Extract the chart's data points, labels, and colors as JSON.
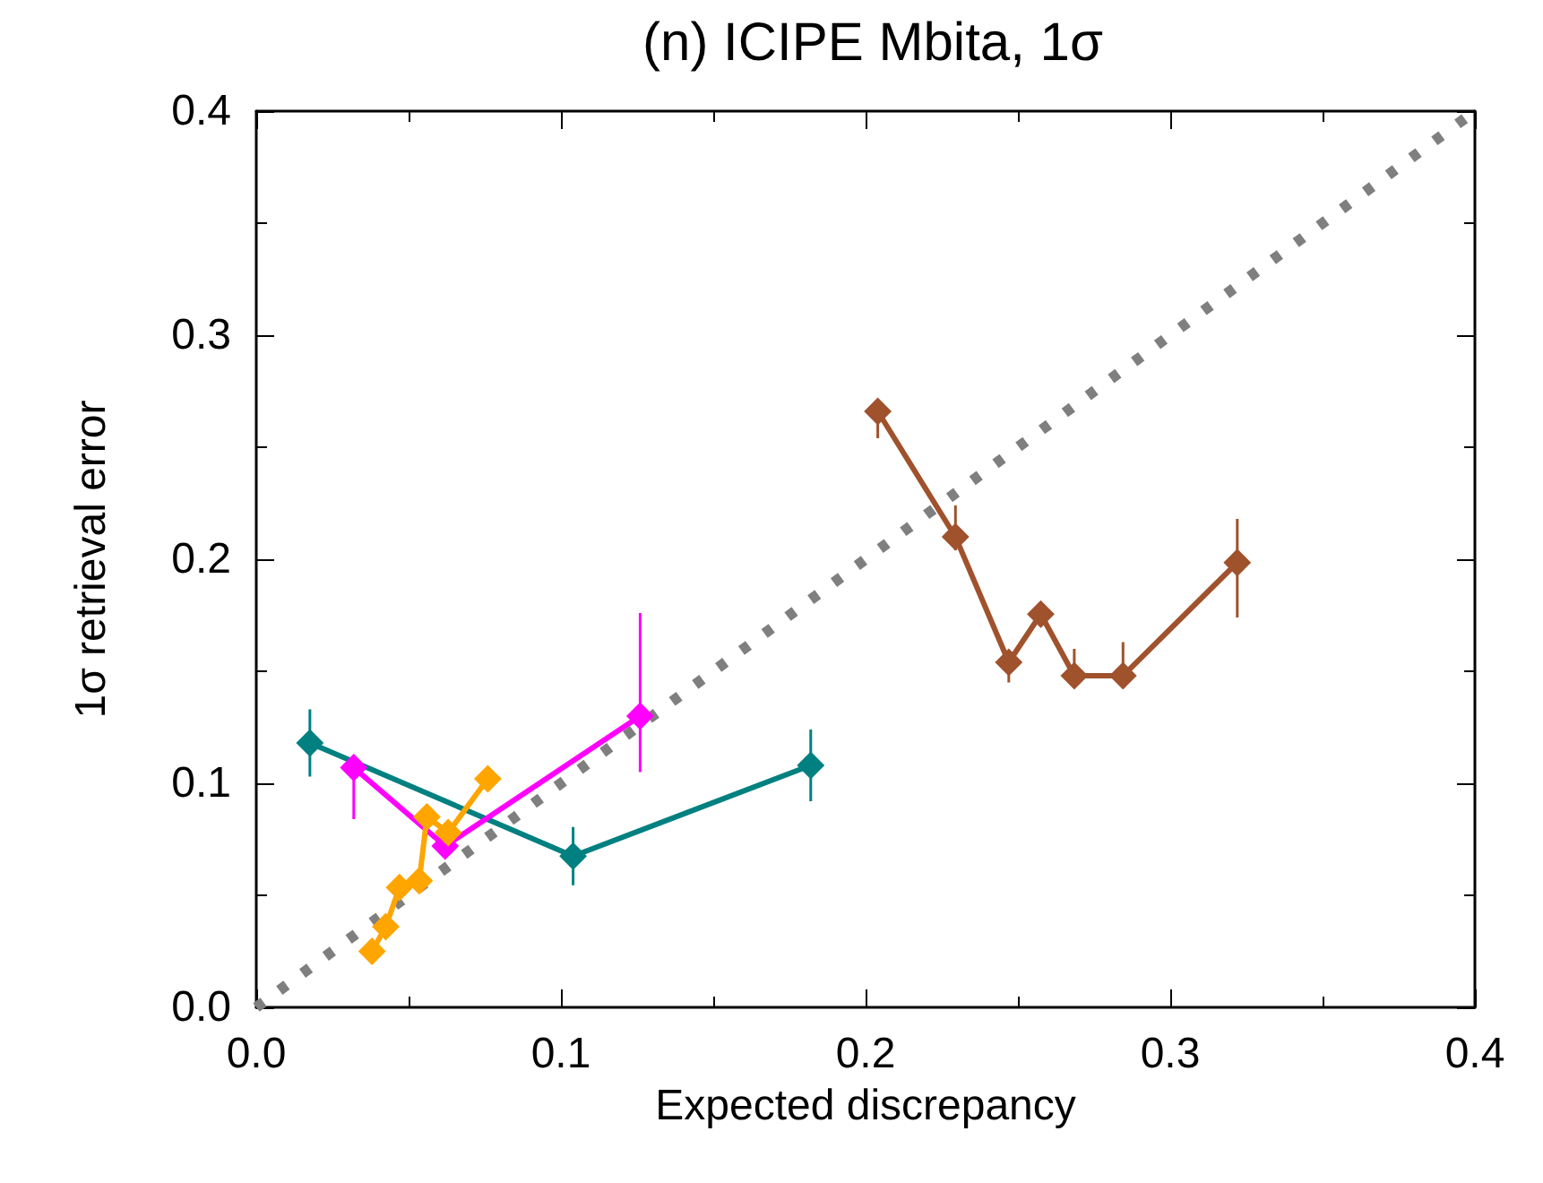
{
  "chart_data": {
    "type": "line",
    "title": "(n) ICIPE Mbita, 1σ",
    "xlabel": "Expected discrepancy",
    "ylabel": "1σ retrieval error",
    "xlim": [
      0,
      0.4
    ],
    "ylim": [
      0,
      0.4
    ],
    "xticks": [
      {
        "value": 0,
        "label": "0.0"
      },
      0.1,
      0.2,
      0.3,
      0.4
    ],
    "yticks": [
      {
        "value": 0,
        "label": "0.0"
      },
      0.1,
      0.2,
      0.3,
      0.4
    ],
    "grid": false,
    "marker": "diamond",
    "line_style": "solid",
    "series": [
      {
        "type": "line",
        "color": "#7f7f7f",
        "line_style": "dotted",
        "marker": "none",
        "x": [
          0,
          0.4
        ],
        "values": [
          0,
          0.4
        ]
      },
      {
        "color": "#008080",
        "x": [
          0.0176,
          0.104,
          0.182
        ],
        "values": [
          0.118,
          0.0675,
          0.108
        ],
        "errors": [
          0.015,
          0.013,
          0.016
        ]
      },
      {
        "color": "#ff00ff",
        "x": [
          0.032,
          0.062,
          0.126
        ],
        "values": [
          0.107,
          0.072,
          0.13
        ],
        "errors": [
          [
            0.084,
            0.11
          ],
          null,
          [
            0.105,
            0.176
          ]
        ]
      },
      {
        "color": "#ffa500",
        "x": [
          0.038,
          0.0425,
          0.047,
          0.0535,
          0.056,
          0.063,
          0.076
        ],
        "values": [
          0.025,
          0.036,
          0.0535,
          0.0565,
          0.085,
          0.078,
          0.102
        ]
      },
      {
        "color": "#a0522d",
        "x": [
          0.204,
          0.2295,
          0.247,
          0.2575,
          0.2685,
          0.2845,
          0.322
        ],
        "values": [
          0.266,
          0.21,
          0.154,
          0.1755,
          0.148,
          0.148,
          0.1985
        ],
        "errors": [
          [
            0.254,
            0.267
          ],
          [
            0.204,
            0.224
          ],
          [
            0.145,
            0.158
          ],
          null,
          [
            0.143,
            0.16
          ],
          [
            0.143,
            0.163
          ],
          [
            0.174,
            0.218
          ]
        ]
      }
    ]
  }
}
